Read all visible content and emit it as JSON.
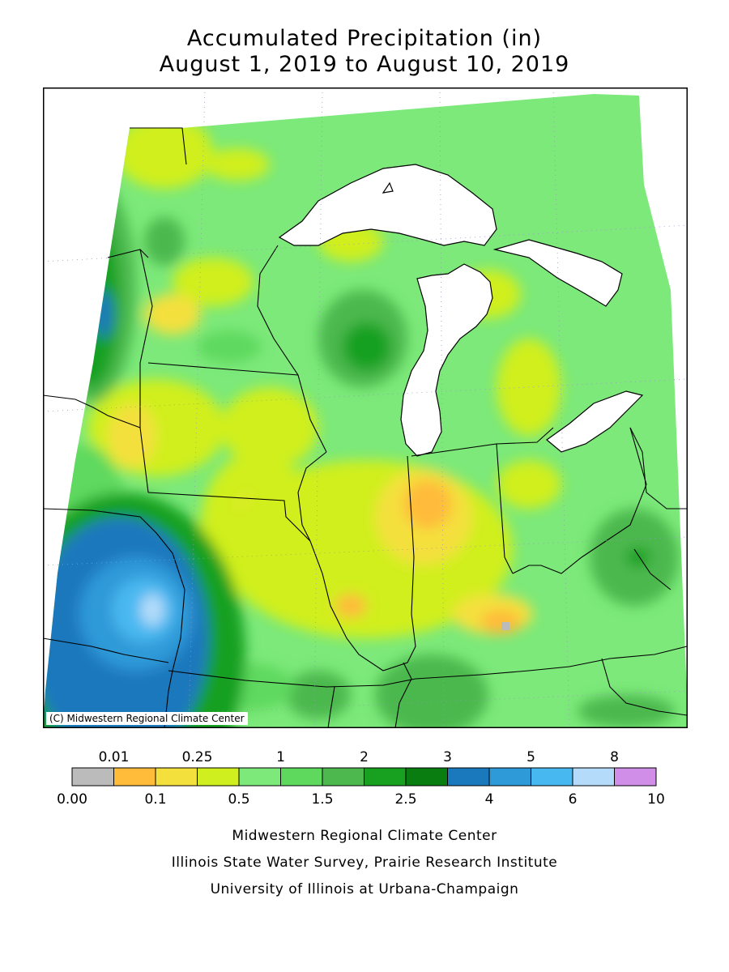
{
  "title_line1": "Accumulated Precipitation (in)",
  "title_line2": "August 1, 2019 to August 10, 2019",
  "copyright": "(C) Midwestern Regional Climate Center",
  "legend": {
    "top_labels": [
      "0.01",
      "0.25",
      "1",
      "2",
      "3",
      "5",
      "8"
    ],
    "bottom_labels": [
      "0.00",
      "0.1",
      "0.5",
      "1.5",
      "2.5",
      "4",
      "6",
      "10"
    ],
    "colors": [
      "#bbbbbb",
      "#ffbb3a",
      "#f4e03c",
      "#d0ef1e",
      "#7ce97a",
      "#5ed95e",
      "#4cb84e",
      "#18a020",
      "#0a7d10",
      "#1a78bd",
      "#2e9ad8",
      "#48b8f0",
      "#b4dcfa",
      "#d08ee8"
    ]
  },
  "credits": [
    "Midwestern Regional Climate Center",
    "Illinois State Water Survey, Prairie Research Institute",
    "University of Illinois at Urbana-Champaign"
  ]
}
